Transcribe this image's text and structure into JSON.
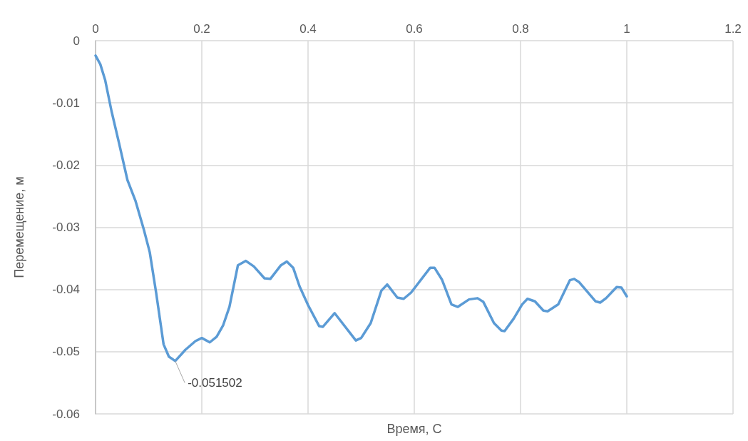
{
  "chart_data": {
    "type": "line",
    "xlabel": "Время, С",
    "ylabel": "Перемещение, м",
    "xlim": [
      0,
      1.2
    ],
    "xticks": [
      0,
      0.2,
      0.4,
      0.6,
      0.8,
      1,
      1.2
    ],
    "ylim": [
      -0.06,
      0
    ],
    "yticks": [
      -0.06,
      -0.05,
      -0.04,
      -0.03,
      -0.02,
      -0.01,
      0
    ],
    "grid": true,
    "marker": "none",
    "line_style": "solid",
    "annotations": [
      {
        "text": "-0.051502",
        "x": 0.15,
        "y": -0.051502
      }
    ],
    "series": [
      {
        "color": "#5b9bd5",
        "x": [
          0,
          0.009,
          0.018,
          0.03,
          0.044,
          0.06,
          0.075,
          0.091,
          0.102,
          0.114,
          0.128,
          0.138,
          0.15,
          0.169,
          0.188,
          0.2,
          0.215,
          0.228,
          0.24,
          0.252,
          0.268,
          0.283,
          0.298,
          0.318,
          0.329,
          0.349,
          0.36,
          0.372,
          0.384,
          0.4,
          0.421,
          0.428,
          0.45,
          0.49,
          0.5,
          0.518,
          0.538,
          0.549,
          0.568,
          0.58,
          0.594,
          0.63,
          0.638,
          0.652,
          0.67,
          0.682,
          0.703,
          0.719,
          0.73,
          0.75,
          0.764,
          0.77,
          0.787,
          0.803,
          0.813,
          0.827,
          0.843,
          0.851,
          0.871,
          0.893,
          0.901,
          0.91,
          0.941,
          0.95,
          0.961,
          0.981,
          0.99,
          1.0
        ],
        "values": [
          -0.0024,
          -0.0038,
          -0.0063,
          -0.0113,
          -0.0164,
          -0.0224,
          -0.0257,
          -0.0304,
          -0.034,
          -0.0405,
          -0.0488,
          -0.0508,
          -0.051502,
          -0.0497,
          -0.0483,
          -0.0478,
          -0.0485,
          -0.0476,
          -0.0458,
          -0.0428,
          -0.0361,
          -0.0354,
          -0.0363,
          -0.0382,
          -0.0383,
          -0.0361,
          -0.0355,
          -0.0365,
          -0.0395,
          -0.0425,
          -0.0459,
          -0.046,
          -0.0438,
          -0.0482,
          -0.0478,
          -0.0454,
          -0.0402,
          -0.0392,
          -0.0413,
          -0.0415,
          -0.0405,
          -0.0365,
          -0.0365,
          -0.0384,
          -0.0424,
          -0.0428,
          -0.0416,
          -0.0414,
          -0.042,
          -0.0454,
          -0.0466,
          -0.0467,
          -0.0447,
          -0.0424,
          -0.0415,
          -0.0419,
          -0.0434,
          -0.0435,
          -0.0424,
          -0.0385,
          -0.0383,
          -0.0388,
          -0.0419,
          -0.0421,
          -0.0414,
          -0.0396,
          -0.0397,
          -0.0411
        ]
      }
    ]
  }
}
